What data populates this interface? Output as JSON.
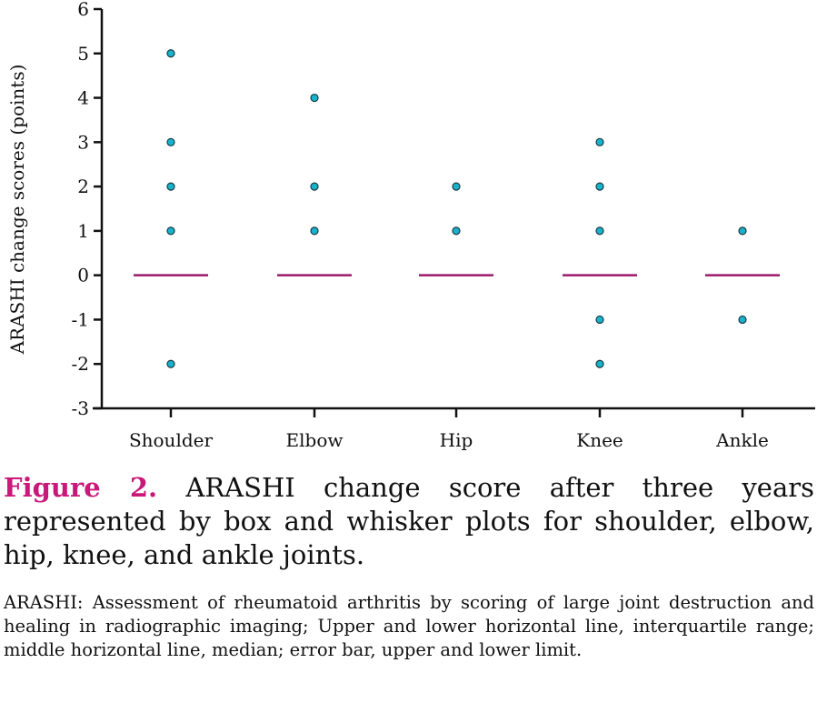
{
  "chart_data": {
    "type": "scatter",
    "title": "",
    "xlabel": "",
    "ylabel": "ARASHI change scores (points)",
    "ylim": [
      -3,
      6
    ],
    "yticks": [
      -3,
      -2,
      -1,
      0,
      1,
      2,
      3,
      4,
      5,
      6
    ],
    "categories": [
      "Shoulder",
      "Elbow",
      "Hip",
      "Knee",
      "Ankle"
    ],
    "points": [
      [
        5,
        3,
        2,
        1,
        -2
      ],
      [
        4,
        2,
        1
      ],
      [
        2,
        1
      ],
      [
        3,
        2,
        1,
        -1,
        -2
      ],
      [
        1,
        -1
      ]
    ],
    "medians": [
      0,
      0,
      0,
      0,
      0
    ],
    "grid": false,
    "colors": {
      "point": "#17b3cc",
      "point_edge": "#1c3a44",
      "median": "#9b1a6a",
      "axis": "#111111"
    }
  },
  "caption": {
    "label": "Figure 2.",
    "text": "ARASHI change score after three years represented by box and whisker plots for shoulder, elbow, hip, knee, and ankle joints."
  },
  "footnote": "ARASHI: Assessment of rheumatoid arthritis by scoring of large joint destruction and healing in radiographic imaging; Upper and lower horizontal line, interquartile range; middle horizontal line, median; error bar, upper and lower limit."
}
